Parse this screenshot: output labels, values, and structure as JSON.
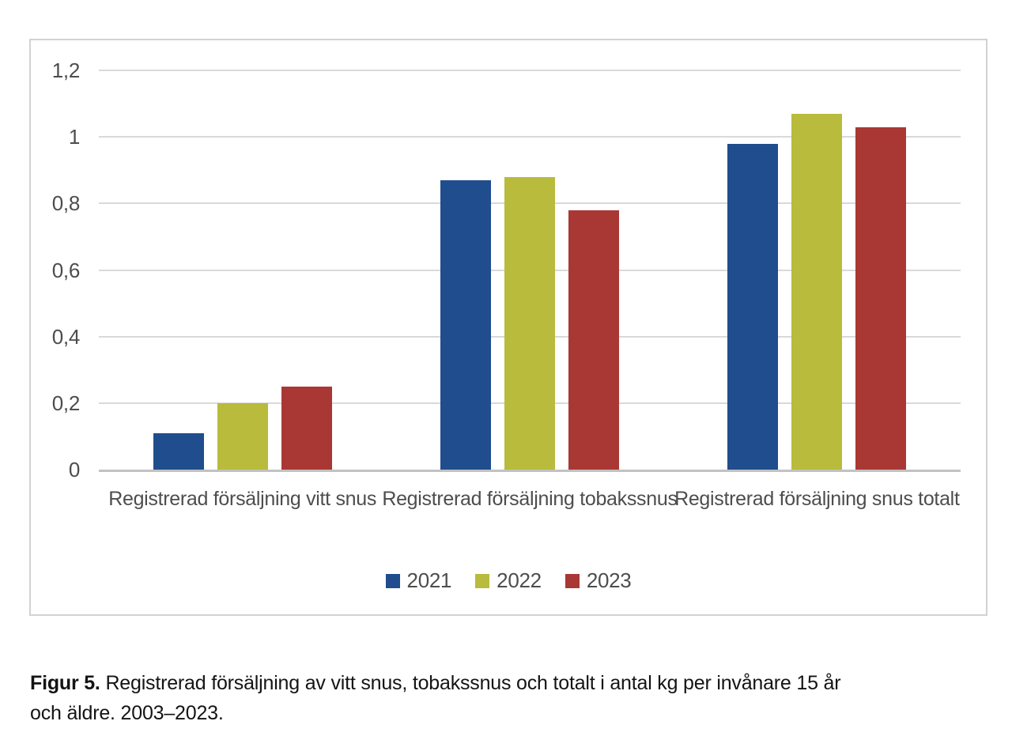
{
  "chart_data": {
    "type": "bar",
    "title": "",
    "xlabel": "",
    "ylabel": "",
    "grid": true,
    "legend_position": "bottom",
    "ylim": [
      0,
      1.2
    ],
    "yticks": [
      {
        "label": "0",
        "value": 0.0
      },
      {
        "label": "0,2",
        "value": 0.2
      },
      {
        "label": "0,4",
        "value": 0.4
      },
      {
        "label": "0,6",
        "value": 0.6
      },
      {
        "label": "0,8",
        "value": 0.8
      },
      {
        "label": "1",
        "value": 1.0
      },
      {
        "label": "1,2",
        "value": 1.2
      }
    ],
    "categories": [
      "Registrerad försäljning vitt snus",
      "Registrerad försäljning tobakssnus",
      "Registrerad försäljning snus totalt"
    ],
    "series": [
      {
        "name": "2021",
        "color": "#204D8D",
        "values": [
          0.11,
          0.87,
          0.98
        ]
      },
      {
        "name": "2022",
        "color": "#B8BB3C",
        "values": [
          0.2,
          0.88,
          1.07
        ]
      },
      {
        "name": "2023",
        "color": "#A93834",
        "values": [
          0.25,
          0.78,
          1.03
        ]
      }
    ]
  },
  "caption": {
    "label": "Figur 5.",
    "line1": "Registrerad försäljning av vitt snus, tobakssnus och totalt i antal kg per invånare 15 år",
    "line2": "och äldre. 2003–2023."
  },
  "colors": {
    "gridline": "#d9d9d9",
    "axis_line": "#c2c2c2",
    "tick_text": "#4d4d4d",
    "panel_border": "#d2d2d2"
  }
}
